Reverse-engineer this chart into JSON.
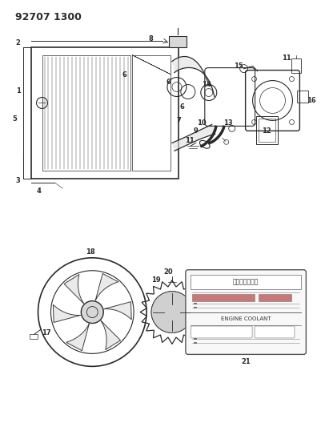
{
  "title": "92707 1300",
  "bg_color": "#ffffff",
  "lc": "#2a2a2a",
  "label_fs": 6,
  "title_fs": 9,
  "japanese_text": "エンジン冷却水",
  "english_text": "ENGINE COOLANT",
  "fig_w": 4.01,
  "fig_h": 5.33,
  "dpi": 100
}
